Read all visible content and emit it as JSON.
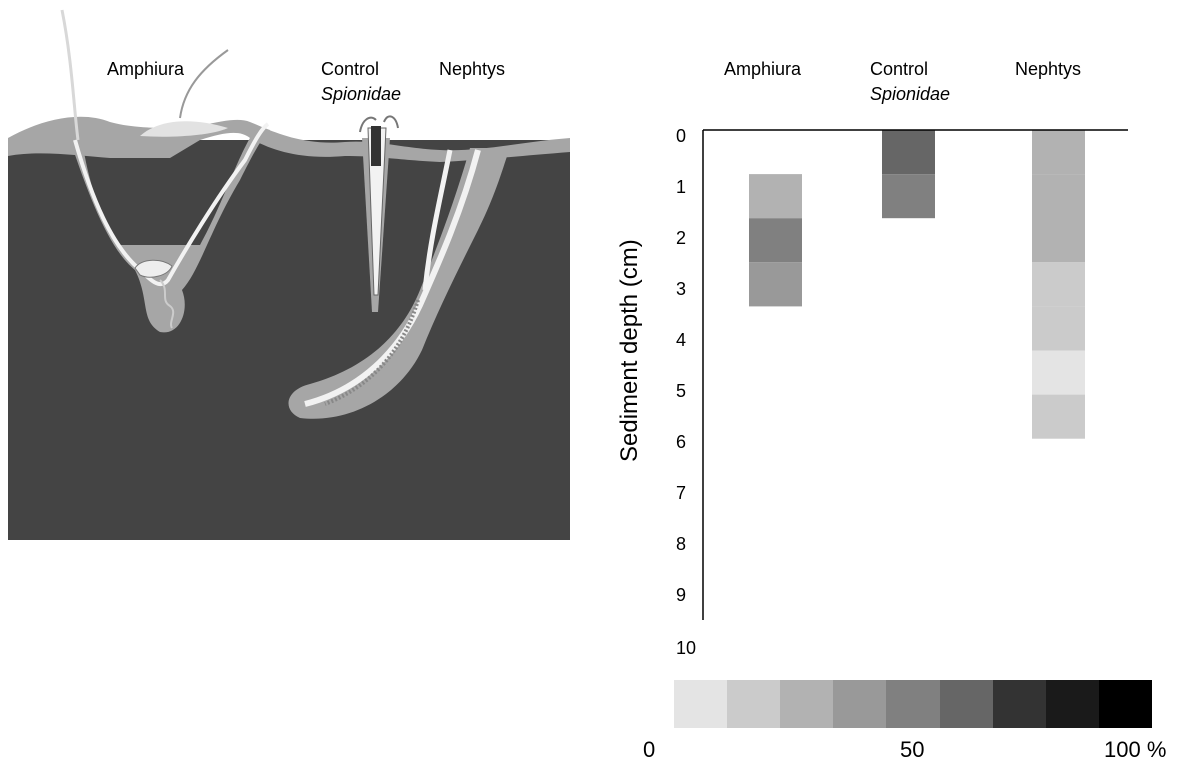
{
  "diagram": {
    "labels": {
      "amphiura": "Amphiura",
      "control": "Control",
      "spionidae": "Spionidae",
      "nephtys": "Nephtys"
    }
  },
  "chart_data": {
    "type": "heatmap",
    "columns": [
      {
        "label": "Amphiura",
        "sublabel": ""
      },
      {
        "label": "Control",
        "sublabel": "Spionidae"
      },
      {
        "label": "Nephtys",
        "sublabel": ""
      }
    ],
    "ylabel": "Sediment depth (cm)",
    "yticks": [
      "0",
      "1",
      "2",
      "3",
      "4",
      "5",
      "6",
      "7",
      "8",
      "9",
      "10"
    ],
    "ylim": [
      0,
      10
    ],
    "cells": [
      {
        "column": 0,
        "from": 0.9,
        "to": 1.8,
        "percent": 22
      },
      {
        "column": 0,
        "from": 1.8,
        "to": 2.7,
        "percent": 55
      },
      {
        "column": 0,
        "from": 2.7,
        "to": 3.6,
        "percent": 33
      },
      {
        "column": 1,
        "from": 0.0,
        "to": 0.9,
        "percent": 66
      },
      {
        "column": 1,
        "from": 0.9,
        "to": 1.8,
        "percent": 44
      },
      {
        "column": 2,
        "from": 0.0,
        "to": 0.9,
        "percent": 20
      },
      {
        "column": 2,
        "from": 0.9,
        "to": 2.7,
        "percent": 25
      },
      {
        "column": 2,
        "from": 2.7,
        "to": 3.6,
        "percent": 12
      },
      {
        "column": 2,
        "from": 3.6,
        "to": 4.5,
        "percent": 8
      },
      {
        "column": 2,
        "from": 4.5,
        "to": 5.4,
        "percent": 3
      },
      {
        "column": 2,
        "from": 5.4,
        "to": 6.3,
        "percent": 12
      }
    ],
    "colorscale": {
      "steps": [
        "#e4e4e4",
        "#cbcbcb",
        "#b2b2b2",
        "#999999",
        "#808080",
        "#666666",
        "#333333",
        "#1a1a1a",
        "#000000"
      ],
      "labels": {
        "min": "0",
        "mid": "50",
        "max": "100 %"
      }
    }
  },
  "colors": {
    "sediment_dark": "#444444",
    "sediment_oxic": "#a6a6a6",
    "burrow_white": "#f2f2f2"
  }
}
